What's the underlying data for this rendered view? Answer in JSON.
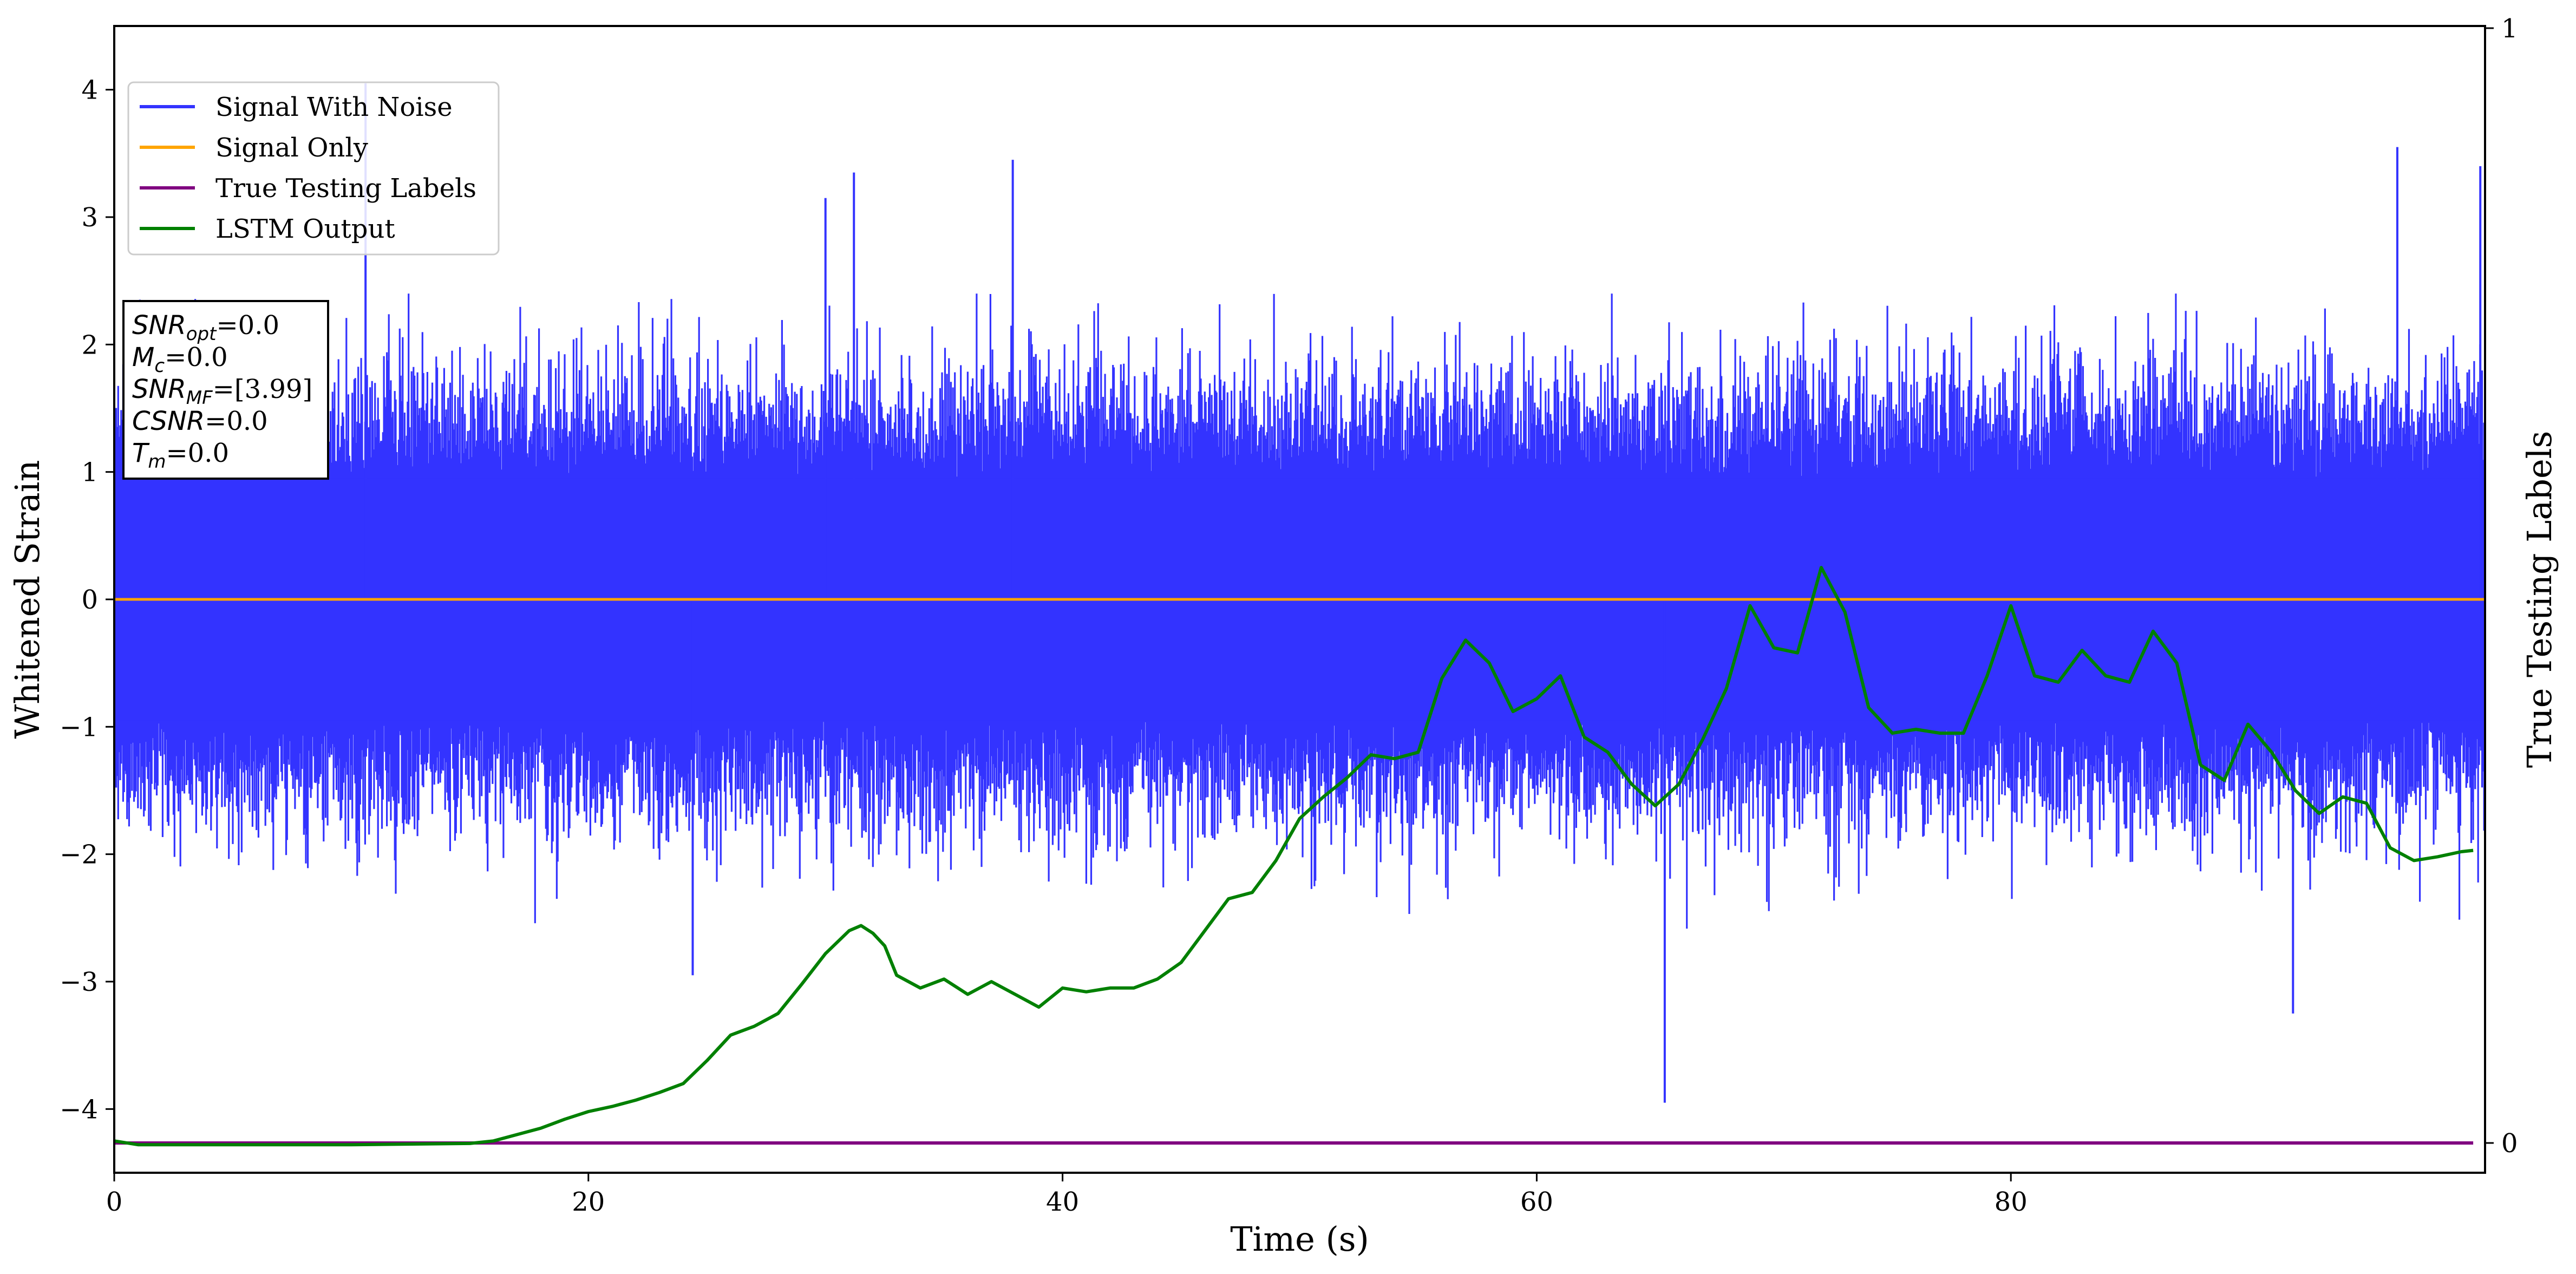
{
  "chart_data": {
    "type": "line",
    "xlabel": "Time (s)",
    "ylabel": "Whitened Strain",
    "ylabel_right": "True Testing Labels",
    "xlim": [
      0,
      100
    ],
    "ylim": [
      -4.5,
      4.5
    ],
    "ylim_right": [
      0,
      1
    ],
    "x_ticks": [
      0,
      20,
      40,
      60,
      80
    ],
    "y_ticks": [
      -4,
      -3,
      -2,
      -1,
      0,
      1,
      2,
      3,
      4
    ],
    "y_ticks_right": [
      0,
      1
    ],
    "grid": false,
    "legend_position": "top-left",
    "colors": {
      "signal_with_noise": "#3333ff",
      "signal_only": "#ffa500",
      "true_labels": "#800080",
      "lstm_output": "#008000"
    },
    "legend": [
      "Signal With Noise",
      "Signal Only",
      "True Testing Labels",
      "LSTM Output"
    ],
    "annotation": [
      {
        "base": "SNR",
        "sub": "opt",
        "value": "=0.0"
      },
      {
        "base": "M",
        "sub": "c",
        "value": "=0.0"
      },
      {
        "base": "SNR",
        "sub": "MF",
        "value": "=[3.99]"
      },
      {
        "base": "CSNR",
        "sub": "",
        "value": "=0.0"
      },
      {
        "base": "T",
        "sub": "m",
        "value": "=0.0"
      }
    ],
    "series": [
      {
        "name": "Signal With Noise",
        "description_noise": true,
        "x_range": [
          0,
          100
        ],
        "mean": 0.0,
        "typical_range": [
          -1.5,
          1.5
        ],
        "extremes": [
          {
            "x": 10.6,
            "y": 4.05
          },
          {
            "x": 31.2,
            "y": 3.35
          },
          {
            "x": 37.9,
            "y": 3.45
          },
          {
            "x": 30.0,
            "y": 3.15
          },
          {
            "x": 65.4,
            "y": -3.95
          },
          {
            "x": 96.3,
            "y": 3.55
          },
          {
            "x": 99.8,
            "y": 3.4
          },
          {
            "x": 91.9,
            "y": -3.25
          },
          {
            "x": 24.4,
            "y": -2.95
          }
        ]
      },
      {
        "name": "Signal Only",
        "x": [
          0,
          100
        ],
        "y": [
          0,
          0
        ]
      },
      {
        "name": "True Testing Labels",
        "axis": "right",
        "x": [
          0,
          99.5
        ],
        "y": [
          0,
          0
        ]
      },
      {
        "name": "LSTM Output",
        "x": [
          0,
          1,
          5,
          10,
          15,
          16,
          17,
          18,
          19,
          20,
          21,
          22,
          23,
          24,
          25,
          26,
          27,
          28,
          29,
          30,
          31,
          31.5,
          32,
          32.5,
          33,
          34,
          35,
          36,
          37,
          38,
          39,
          40,
          41,
          42,
          43,
          44,
          45,
          46,
          47,
          48,
          49,
          50,
          51,
          52,
          53,
          54,
          55,
          56,
          57,
          58,
          59,
          60,
          61,
          62,
          63,
          64,
          65,
          66,
          67,
          68,
          69,
          70,
          71,
          72,
          73,
          74,
          75,
          76,
          77,
          78,
          79,
          80,
          81,
          82,
          83,
          84,
          85,
          86,
          87,
          88,
          89,
          90,
          91,
          92,
          93,
          94,
          95,
          96,
          97,
          98,
          99,
          99.5
        ],
        "y": [
          -4.25,
          -4.28,
          -4.28,
          -4.28,
          -4.27,
          -4.25,
          -4.2,
          -4.15,
          -4.08,
          -4.02,
          -3.98,
          -3.93,
          -3.87,
          -3.8,
          -3.62,
          -3.42,
          -3.35,
          -3.25,
          -3.02,
          -2.78,
          -2.6,
          -2.56,
          -2.62,
          -2.72,
          -2.95,
          -3.05,
          -2.98,
          -3.1,
          -3.0,
          -3.1,
          -3.2,
          -3.05,
          -3.08,
          -3.05,
          -3.05,
          -2.98,
          -2.85,
          -2.6,
          -2.35,
          -2.3,
          -2.05,
          -1.72,
          -1.55,
          -1.4,
          -1.22,
          -1.25,
          -1.2,
          -0.62,
          -0.32,
          -0.5,
          -0.88,
          -0.78,
          -0.6,
          -1.08,
          -1.2,
          -1.45,
          -1.62,
          -1.45,
          -1.1,
          -0.7,
          -0.05,
          -0.38,
          -0.42,
          0.25,
          -0.1,
          -0.85,
          -1.05,
          -1.02,
          -1.05,
          -1.05,
          -0.6,
          -0.05,
          -0.6,
          -0.65,
          -0.4,
          -0.6,
          -0.65,
          -0.25,
          -0.5,
          -1.3,
          -1.42,
          -0.98,
          -1.2,
          -1.5,
          -1.68,
          -1.55,
          -1.6,
          -1.95,
          -2.05,
          -2.02,
          -1.98,
          -1.97
        ]
      }
    ]
  }
}
